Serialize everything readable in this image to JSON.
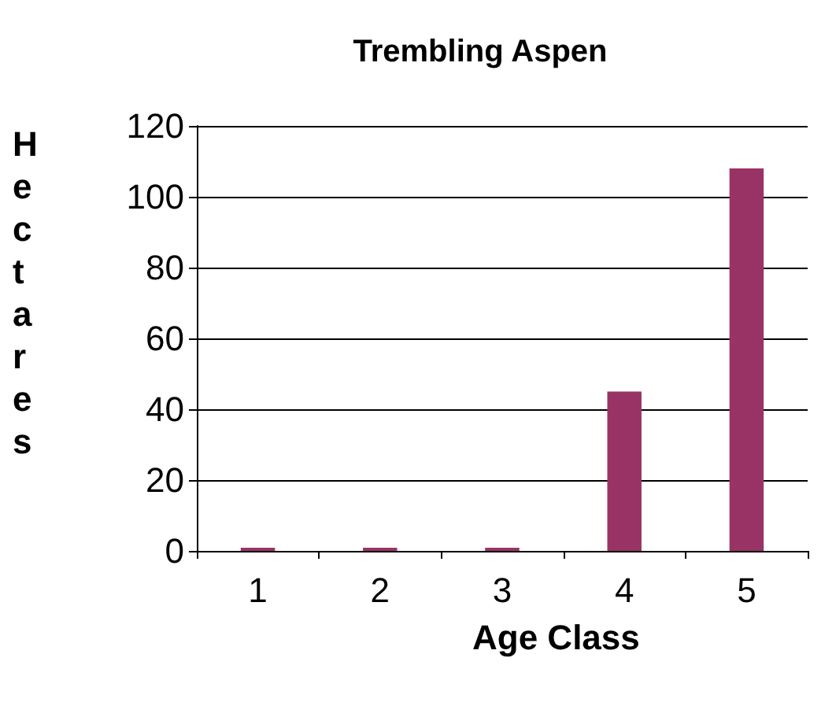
{
  "chart_data": {
    "type": "bar",
    "title": "Trembling Aspen",
    "xlabel": "Age Class",
    "ylabel": "Hectares",
    "categories": [
      "1",
      "2",
      "3",
      "4",
      "5"
    ],
    "values": [
      0,
      0,
      0,
      45,
      108
    ],
    "color": "#993366",
    "ylim": [
      0,
      120
    ],
    "yticks": [
      0,
      20,
      40,
      60,
      80,
      100,
      120
    ],
    "grid": "y"
  }
}
